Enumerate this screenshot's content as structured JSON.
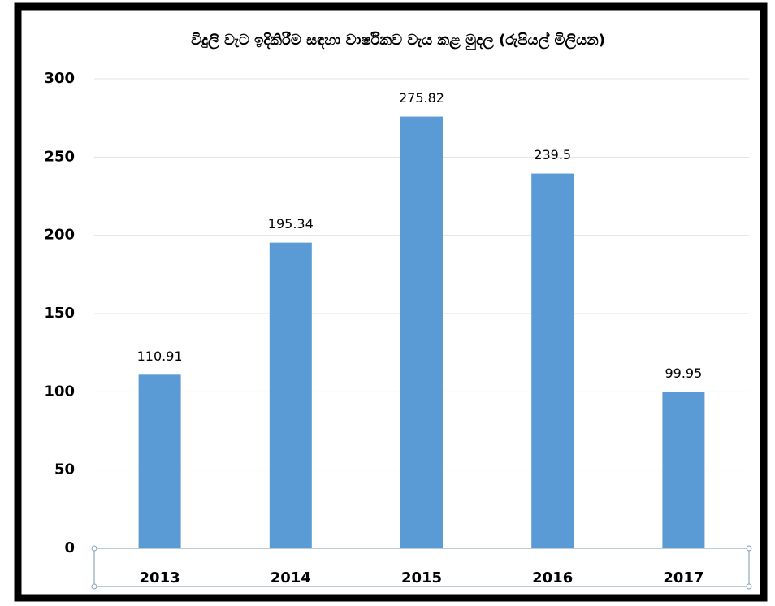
{
  "chart_data": {
    "type": "bar",
    "title": "විදුලි වැට ඉදිකිරීම සඳහා වාර්ෂිකව වැය කළ මුදල (රුපියල් මිලියන)",
    "categories": [
      "2013",
      "2014",
      "2015",
      "2016",
      "2017"
    ],
    "values": [
      110.91,
      195.34,
      275.82,
      239.5,
      99.95
    ],
    "color": "#5b9bd5",
    "ylim": [
      0,
      300
    ],
    "yticks": [
      0,
      50,
      100,
      150,
      200,
      250,
      300
    ],
    "grid": true
  }
}
